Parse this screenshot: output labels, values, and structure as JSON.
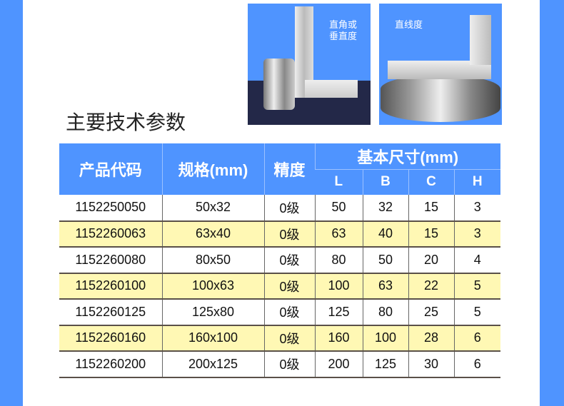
{
  "images": [
    {
      "caption": "直角或\n垂直度"
    },
    {
      "caption": "直线度"
    }
  ],
  "title": "主要技术参数",
  "table": {
    "headers": {
      "code": "产品代码",
      "spec": "规格(mm)",
      "grade": "精度",
      "dims": "基本尺寸(mm)",
      "L": "L",
      "B": "B",
      "C": "C",
      "H": "H"
    },
    "rows": [
      [
        "1152250050",
        "50x32",
        "0级",
        "50",
        "32",
        "15",
        "3"
      ],
      [
        "1152260063",
        "63x40",
        "0级",
        "63",
        "40",
        "15",
        "3"
      ],
      [
        "1152260080",
        "80x50",
        "0级",
        "80",
        "50",
        "20",
        "4"
      ],
      [
        "1152260100",
        "100x63",
        "0级",
        "100",
        "63",
        "22",
        "5"
      ],
      [
        "1152260125",
        "125x80",
        "0级",
        "125",
        "80",
        "25",
        "5"
      ],
      [
        "1152260160",
        "160x100",
        "0级",
        "160",
        "100",
        "28",
        "6"
      ],
      [
        "1152260200",
        "200x125",
        "0级",
        "200",
        "125",
        "30",
        "6"
      ]
    ]
  },
  "colors": {
    "accent": "#4f94ff",
    "highlight_row": "#fff8b4"
  }
}
